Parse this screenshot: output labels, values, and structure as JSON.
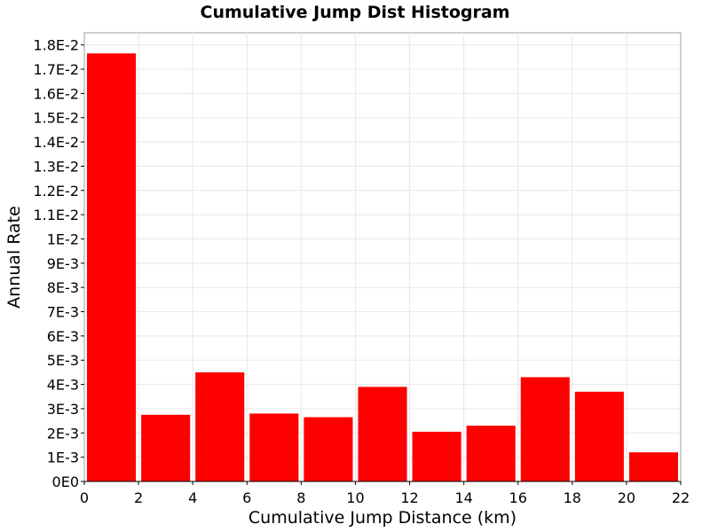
{
  "chart_data": {
    "type": "bar",
    "title": "Cumulative Jump Dist Histogram",
    "xlabel": "Cumulative Jump Distance (km)",
    "ylabel": "Annual Rate",
    "bin_width": 2,
    "x": [
      1,
      3,
      5,
      7,
      9,
      11,
      13,
      15,
      17,
      19,
      21
    ],
    "values": [
      0.01765,
      0.00275,
      0.0045,
      0.0028,
      0.00265,
      0.0039,
      0.00205,
      0.0023,
      0.0043,
      0.0037,
      0.0012
    ],
    "bar_color": "#ff0000",
    "xlim": [
      0,
      22
    ],
    "ylim": [
      0,
      0.0185
    ],
    "x_ticks": [
      0,
      2,
      4,
      6,
      8,
      10,
      12,
      14,
      16,
      18,
      20,
      22
    ],
    "x_tick_labels": [
      "0",
      "2",
      "4",
      "6",
      "8",
      "10",
      "12",
      "14",
      "16",
      "18",
      "20",
      "22"
    ],
    "y_ticks": [
      0,
      0.001,
      0.002,
      0.003,
      0.004,
      0.005,
      0.006,
      0.007,
      0.008,
      0.009,
      0.01,
      0.011,
      0.012,
      0.013,
      0.014,
      0.015,
      0.016,
      0.017,
      0.018
    ],
    "y_tick_labels": [
      "0E0",
      "1E-3",
      "2E-3",
      "3E-3",
      "4E-3",
      "5E-3",
      "6E-3",
      "7E-3",
      "8E-3",
      "9E-3",
      "1E-2",
      "1.1E-2",
      "1.2E-2",
      "1.3E-2",
      "1.4E-2",
      "1.5E-2",
      "1.6E-2",
      "1.7E-2",
      "1.8E-2"
    ],
    "grid": true
  }
}
